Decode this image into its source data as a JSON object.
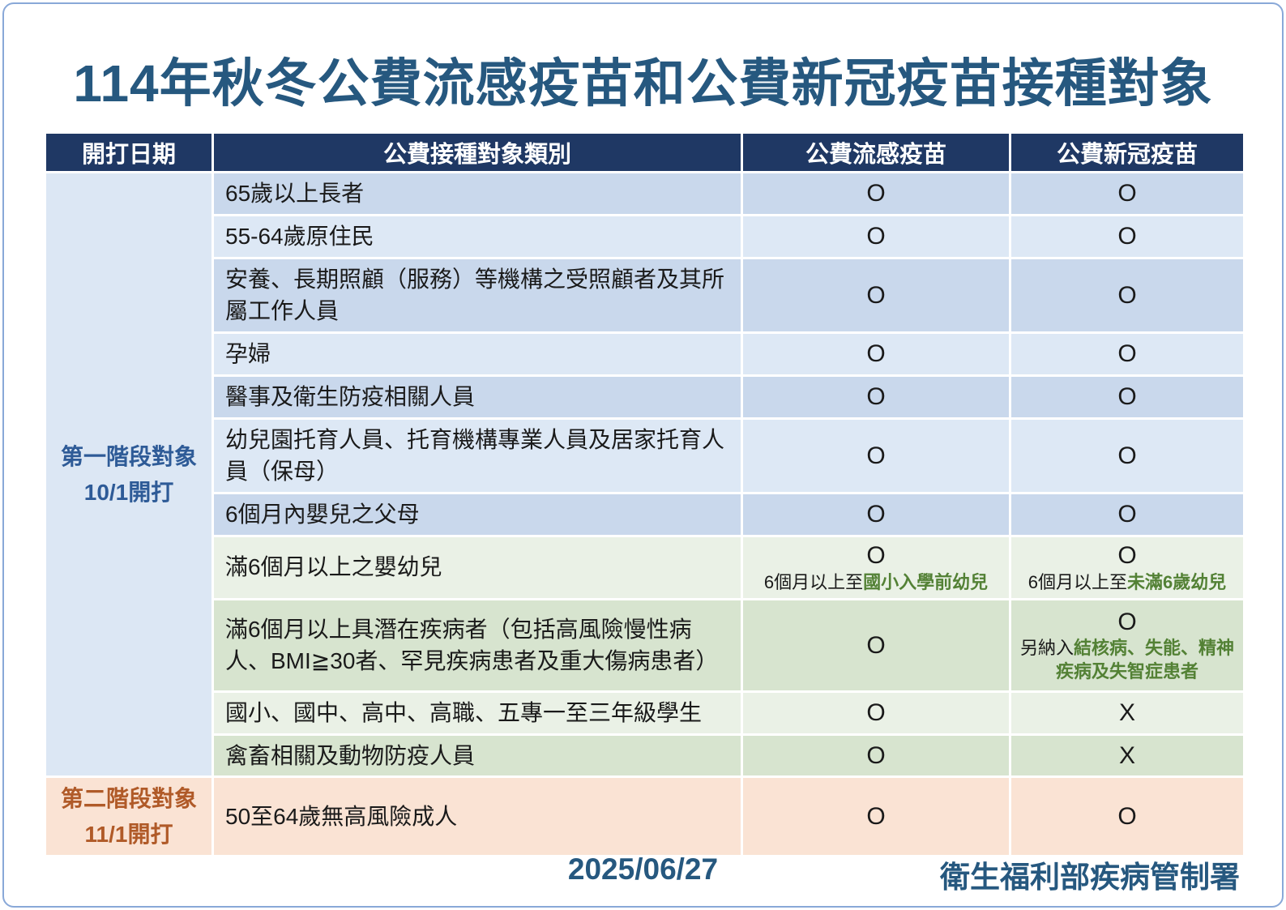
{
  "page": {
    "title": "114年秋冬公費流感疫苗和公費新冠疫苗接種對象",
    "footer": {
      "date": "2025/06/27",
      "source": "衛生福利部疾病管制署"
    }
  },
  "colors": {
    "title_color": "#26587f",
    "header_bg": "#1f3864",
    "header_text": "#ffffff",
    "blue_a": "#c9d8ec",
    "blue_b": "#dde8f5",
    "green_a": "#eaf1e6",
    "green_b": "#d7e4cf",
    "peach": "#fae3d4",
    "stage1_bg": "#dce7f4",
    "stage1_text": "#2e5b97",
    "stage2_text": "#b05a28",
    "highlight_green": "#538135",
    "page_border": "#89a8d8"
  },
  "table": {
    "headers": [
      "開打日期",
      "公費接種對象類別",
      "公費流感疫苗",
      "公費新冠疫苗"
    ],
    "stages": [
      {
        "line1": "第一階段對象",
        "line2": "10/1開打"
      },
      {
        "line1": "第二階段對象",
        "line2": "11/1開打"
      }
    ],
    "rows": [
      {
        "category": "65歲以上長者",
        "flu": {
          "mark": "O"
        },
        "covid": {
          "mark": "O"
        },
        "tone": "blue-a",
        "size": "h1line",
        "stage_index": 0,
        "stage_rowspan": 11
      },
      {
        "category": "55-64歲原住民",
        "flu": {
          "mark": "O"
        },
        "covid": {
          "mark": "O"
        },
        "tone": "blue-b",
        "size": "h1line"
      },
      {
        "category": "安養、長期照顧（服務）等機構之受照顧者及其所屬工作人員",
        "flu": {
          "mark": "O"
        },
        "covid": {
          "mark": "O"
        },
        "tone": "blue-a",
        "size": "h2line"
      },
      {
        "category": "孕婦",
        "flu": {
          "mark": "O"
        },
        "covid": {
          "mark": "O"
        },
        "tone": "blue-b",
        "size": "h1line"
      },
      {
        "category": "醫事及衛生防疫相關人員",
        "flu": {
          "mark": "O"
        },
        "covid": {
          "mark": "O"
        },
        "tone": "blue-a",
        "size": "h1line"
      },
      {
        "category": "幼兒園托育人員、托育機構專業人員及居家托育人員（保母）",
        "flu": {
          "mark": "O"
        },
        "covid": {
          "mark": "O"
        },
        "tone": "blue-b",
        "size": "h2line"
      },
      {
        "category": "6個月內嬰兒之父母",
        "flu": {
          "mark": "O"
        },
        "covid": {
          "mark": "O"
        },
        "tone": "blue-a",
        "size": "h1line"
      },
      {
        "category": "滿6個月以上之嬰幼兒",
        "flu": {
          "mark": "O",
          "note_prefix": "6個月以上至",
          "note_highlight": "國小入學前幼兒"
        },
        "covid": {
          "mark": "O",
          "note_prefix": "6個月以上至",
          "note_highlight": "未滿6歲幼兒"
        },
        "tone": "green-a",
        "size": "hnote"
      },
      {
        "category": "滿6個月以上具潛在疾病者（包括高風險慢性病人、BMI≧30者、罕見疾病患者及重大傷病患者）",
        "flu": {
          "mark": "O"
        },
        "covid": {
          "mark": "O",
          "note_prefix": "另納入",
          "note_highlight": "結核病、失能、精神疾病及失智症患者"
        },
        "tone": "green-b",
        "size": "hbig"
      },
      {
        "category": "國小、國中、高中、高職、五專一至三年級學生",
        "flu": {
          "mark": "O"
        },
        "covid": {
          "mark": "X"
        },
        "tone": "green-a",
        "size": "h1line"
      },
      {
        "category": "禽畜相關及動物防疫人員",
        "flu": {
          "mark": "O"
        },
        "covid": {
          "mark": "X"
        },
        "tone": "green-b",
        "size": "h1line"
      },
      {
        "category": "50至64歲無高風險成人",
        "flu": {
          "mark": "O"
        },
        "covid": {
          "mark": "O"
        },
        "tone": "peach",
        "size": "hstage2",
        "stage_index": 1,
        "stage_rowspan": 1
      }
    ]
  }
}
